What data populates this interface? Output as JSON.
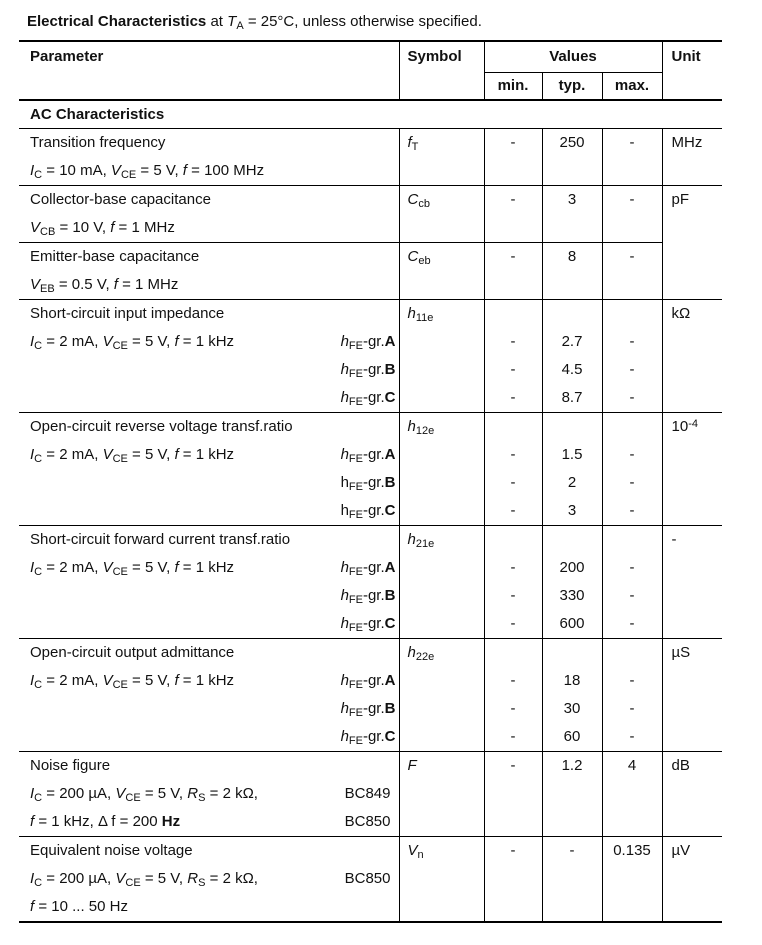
{
  "page": {
    "background": "#ffffff",
    "text_color": "#111111",
    "rule_color": "#000000"
  },
  "title": {
    "segments": [
      "b:Electrical Characteristics",
      " at ",
      "i:T",
      "sub:A",
      " = 25°C, unless otherwise specified."
    ]
  },
  "table": {
    "header": {
      "parameter": "Parameter",
      "symbol": "Symbol",
      "values": "Values",
      "min": "min.",
      "typ": "typ.",
      "max": "max.",
      "unit": "Unit"
    },
    "section_title": "AC Characteristics",
    "rows": [
      {
        "type": "simple",
        "title": [
          "Transition frequency"
        ],
        "conditions": [
          [
            "i:I",
            "sub:C",
            " = 10 mA,  ",
            "i:V",
            "sub:CE",
            " = 5 V, ",
            "i:f",
            " = 100 MHz"
          ]
        ],
        "symbol": [
          "i:f",
          "sub:T"
        ],
        "min": "-",
        "typ": "250",
        "max": "-",
        "unit": [
          "MHz"
        ]
      },
      {
        "type": "simple",
        "title": [
          "Collector-base capacitance"
        ],
        "conditions": [
          [
            "i:V",
            "sub:CB",
            " = 10 V, ",
            "i:f",
            " = 1 MHz"
          ]
        ],
        "symbol": [
          "i:C",
          "sub:cb"
        ],
        "min": "-",
        "typ": "3",
        "max": "-",
        "unit": [
          "pF"
        ],
        "unit_rowspan": 2
      },
      {
        "type": "simple",
        "title": [
          "Emitter-base capacitance"
        ],
        "conditions": [
          [
            "i:V",
            "sub:EB",
            " = 0.5 V, ",
            "i:f",
            " = 1 MHz"
          ]
        ],
        "symbol": [
          "i:C",
          "sub:eb"
        ],
        "min": "-",
        "typ": "8",
        "max": "-",
        "unit": null
      },
      {
        "type": "group",
        "title": [
          "Short-circuit input impedance"
        ],
        "conditions": [
          [
            "i:I",
            "sub:C",
            " = 2 mA,  ",
            "i:V",
            "sub:CE",
            " = 5 V,  ",
            "i:f",
            " = 1 kHz"
          ]
        ],
        "symbol": [
          "i:h",
          "sub:11e"
        ],
        "unit": [
          "kΩ"
        ],
        "groups": [
          {
            "label": [
              "i:h",
              "sub:FE",
              "-gr.",
              "b:A"
            ],
            "min": "-",
            "typ": "2.7",
            "max": "-"
          },
          {
            "label": [
              "i:h",
              "sub:FE",
              "-gr.",
              "b:B"
            ],
            "min": "-",
            "typ": "4.5",
            "max": "-"
          },
          {
            "label": [
              "i:h",
              "sub:FE",
              "-gr.",
              "b:C"
            ],
            "min": "-",
            "typ": "8.7",
            "max": "-"
          }
        ]
      },
      {
        "type": "group",
        "title": [
          "Open-circuit reverse voltage transf.ratio"
        ],
        "conditions": [
          [
            "i:I",
            "sub:C",
            " = 2 mA,  ",
            "i:V",
            "sub:CE",
            " = 5 V,  ",
            "i:f",
            " = 1 kHz"
          ]
        ],
        "symbol": [
          "i:h",
          "sub:12e"
        ],
        "unit": [
          "10",
          "sup:-4"
        ],
        "groups": [
          {
            "label": [
              "i:h",
              "sub:FE",
              "-gr.",
              "b:A"
            ],
            "min": "-",
            "typ": "1.5",
            "max": "-"
          },
          {
            "label": [
              "h",
              "sub:FE",
              "-gr.",
              "b:B"
            ],
            "min": "-",
            "typ": "2",
            "max": "-"
          },
          {
            "label": [
              "h",
              "sub:FE",
              "-gr.",
              "b:C"
            ],
            "min": "-",
            "typ": "3",
            "max": "-"
          }
        ]
      },
      {
        "type": "group",
        "title": [
          "Short-circuit forward current transf.ratio"
        ],
        "conditions": [
          [
            "i:I",
            "sub:C",
            " = 2 mA,  ",
            "i:V",
            "sub:CE",
            " = 5 V,  ",
            "i:f",
            " = 1 kHz"
          ]
        ],
        "symbol": [
          "i:h",
          "sub:21e"
        ],
        "unit": [
          "-"
        ],
        "groups": [
          {
            "label": [
              "i:h",
              "sub:FE",
              "-gr.",
              "b:A"
            ],
            "min": "-",
            "typ": "200",
            "max": "-"
          },
          {
            "label": [
              "i:h",
              "sub:FE",
              "-gr.",
              "b:B"
            ],
            "min": "-",
            "typ": "330",
            "max": "-"
          },
          {
            "label": [
              "i:h",
              "sub:FE",
              "-gr.",
              "b:C"
            ],
            "min": "-",
            "typ": "600",
            "max": "-"
          }
        ]
      },
      {
        "type": "group",
        "title": [
          "Open-circuit output admittance"
        ],
        "conditions": [
          [
            "i:I",
            "sub:C",
            " = 2 mA,  ",
            "i:V",
            "sub:CE",
            " = 5 V,  ",
            "i:f",
            " = 1 kHz"
          ]
        ],
        "symbol": [
          "i:h",
          "sub:22e"
        ],
        "unit": [
          "µS"
        ],
        "groups": [
          {
            "label": [
              "i:h",
              "sub:FE",
              "-gr.",
              "b:A"
            ],
            "min": "-",
            "typ": "18",
            "max": "-"
          },
          {
            "label": [
              "i:h",
              "sub:FE",
              "-gr.",
              "b:B"
            ],
            "min": "-",
            "typ": "30",
            "max": "-"
          },
          {
            "label": [
              "i:h",
              "sub:FE",
              "-gr.",
              "b:C"
            ],
            "min": "-",
            "typ": "60",
            "max": "-"
          }
        ]
      },
      {
        "type": "noise",
        "title": [
          "Noise figure"
        ],
        "conditions": [
          [
            "i:I",
            "sub:C",
            " = 200 µA,  ",
            "i:V",
            "sub:CE",
            " = 5 V, ",
            "i:R",
            "sub:S",
            " = 2 kΩ,"
          ],
          [
            "i:f",
            " = 1 kHz, Δ f = 200 ",
            "b:Hz"
          ]
        ],
        "right_labels": [
          "BC849",
          "BC850"
        ],
        "symbol": [
          "i:F"
        ],
        "min": "-",
        "typ": "1.2",
        "max": "4",
        "unit": [
          "dB"
        ]
      },
      {
        "type": "noise",
        "title": [
          "Equivalent noise voltage"
        ],
        "conditions": [
          [
            "i:I",
            "sub:C",
            " = 200 µA,  ",
            "i:V",
            "sub:CE",
            " = 5 V, ",
            "i:R",
            "sub:S",
            " = 2 kΩ,"
          ],
          [
            "i:f",
            " = 10 ... 50 Hz"
          ]
        ],
        "right_labels": [
          "BC850",
          ""
        ],
        "symbol": [
          "i:V",
          "sub:n"
        ],
        "min": "-",
        "typ": "-",
        "max": "0.135",
        "unit": [
          "µV"
        ]
      }
    ]
  }
}
